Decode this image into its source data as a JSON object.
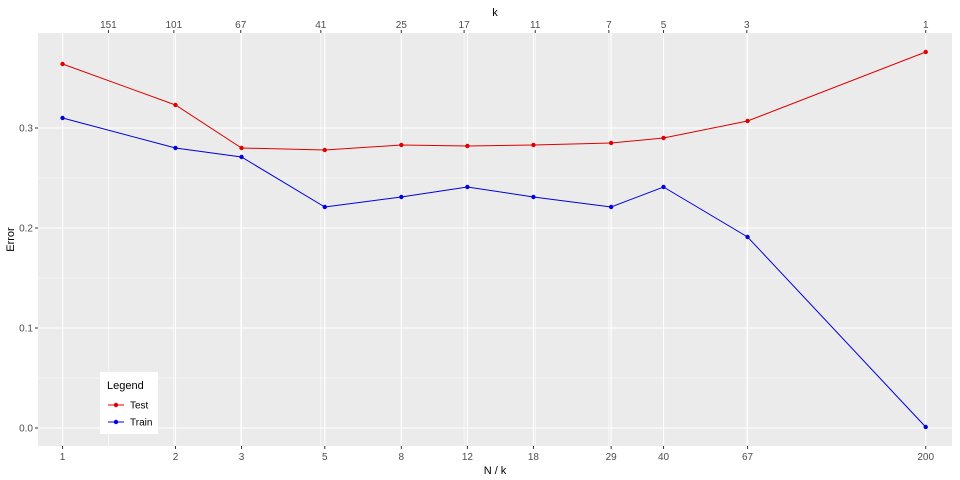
{
  "chart_data": {
    "type": "line",
    "xlabel": "N / k",
    "ylabel": "Error",
    "top_axis_label": "k",
    "x_scale": "log",
    "xlim": [
      0.86,
      235
    ],
    "ylim": [
      -0.018,
      0.395
    ],
    "x_ticks": [
      1,
      2,
      3,
      5,
      8,
      12,
      18,
      29,
      40,
      67,
      200
    ],
    "y_ticks": [
      0.0,
      0.1,
      0.2,
      0.3
    ],
    "y_tick_labels": [
      "0.0",
      "0.1",
      "0.2",
      "0.3"
    ],
    "top_ticks": [
      {
        "label": "151",
        "at_x": 1.325
      },
      {
        "label": "101",
        "at_x": 1.98
      },
      {
        "label": "67",
        "at_x": 2.985
      },
      {
        "label": "41",
        "at_x": 4.88
      },
      {
        "label": "25",
        "at_x": 8.0
      },
      {
        "label": "17",
        "at_x": 11.76
      },
      {
        "label": "11",
        "at_x": 18.2
      },
      {
        "label": "7",
        "at_x": 28.6
      },
      {
        "label": "5",
        "at_x": 40.0
      },
      {
        "label": "3",
        "at_x": 66.7
      },
      {
        "label": "1",
        "at_x": 200.0
      }
    ],
    "grid": true,
    "legend_title": "Legend",
    "legend_position": "bottom-left",
    "series": [
      {
        "name": "Test",
        "color": "#e00000",
        "x": [
          1,
          2,
          3,
          5,
          8,
          12,
          18,
          29,
          40,
          67,
          200
        ],
        "y": [
          0.364,
          0.323,
          0.28,
          0.278,
          0.283,
          0.282,
          0.283,
          0.285,
          0.29,
          0.307,
          0.376
        ]
      },
      {
        "name": "Train",
        "color": "#0000e0",
        "x": [
          1,
          2,
          3,
          5,
          8,
          12,
          18,
          29,
          40,
          67,
          200
        ],
        "y": [
          0.31,
          0.28,
          0.271,
          0.221,
          0.231,
          0.241,
          0.231,
          0.221,
          0.241,
          0.191,
          0.001
        ]
      }
    ]
  }
}
